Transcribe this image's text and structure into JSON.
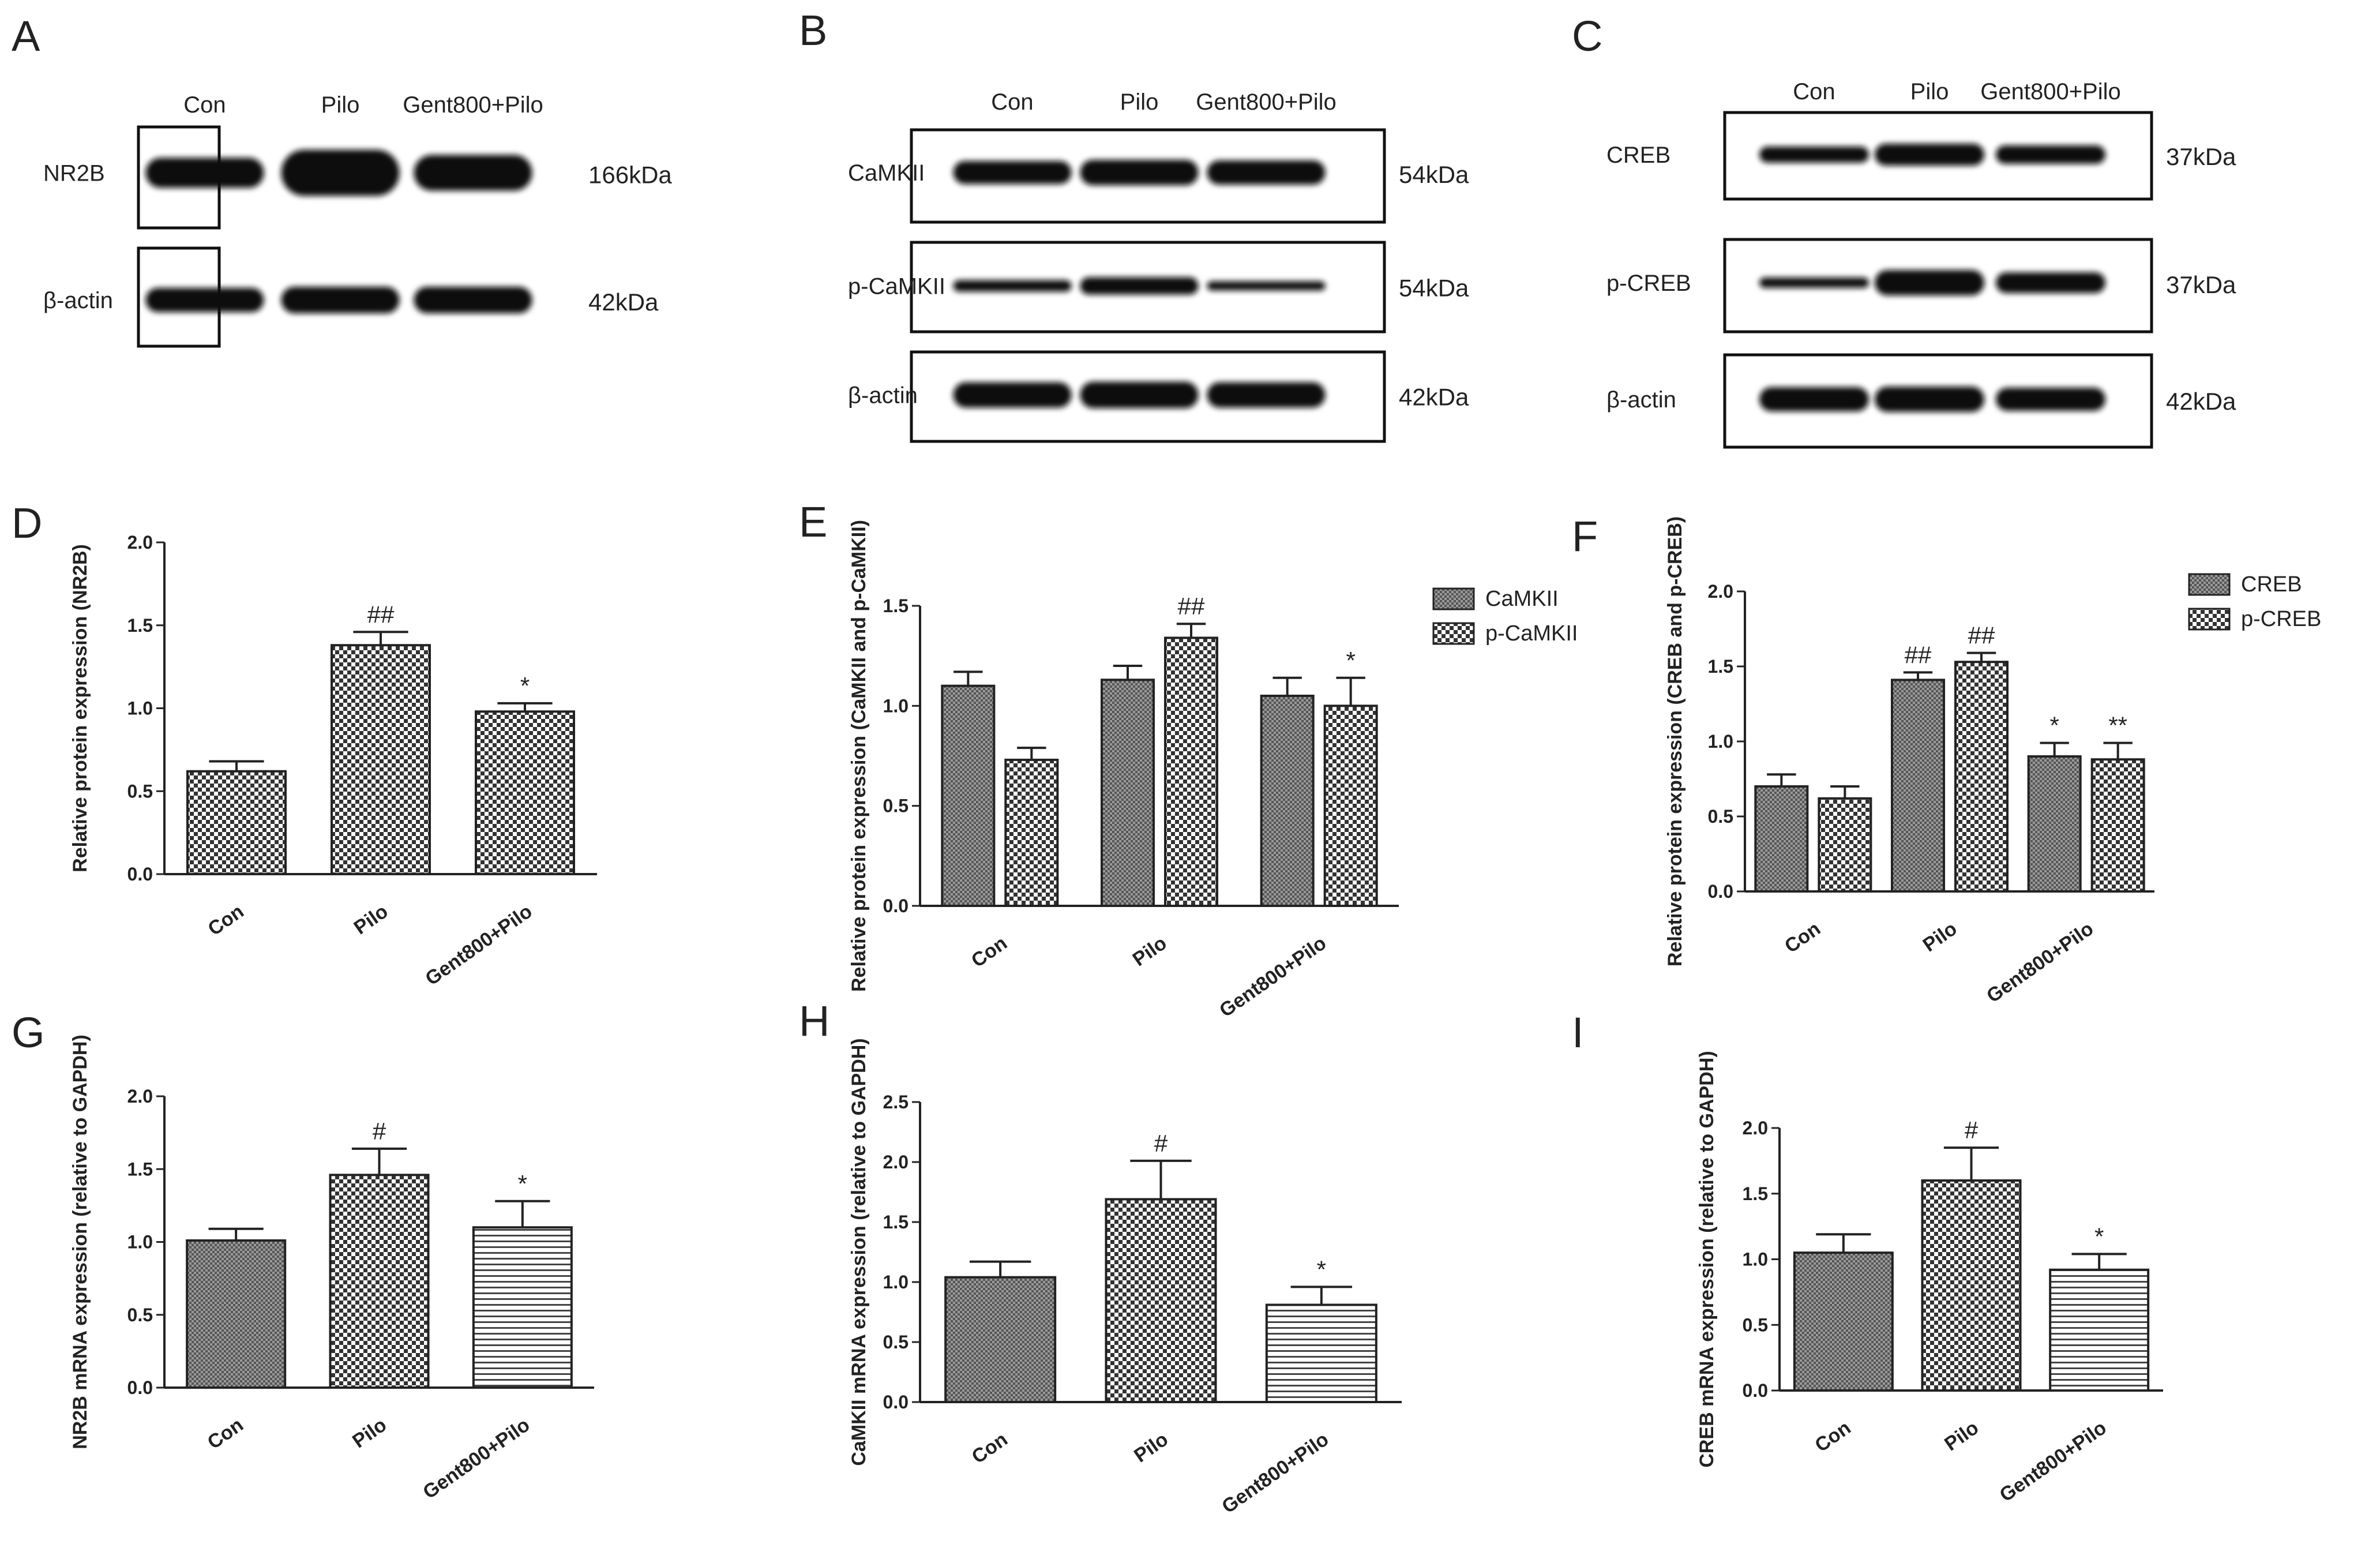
{
  "panels": [
    {
      "letter": "A",
      "lanes": [
        "Con",
        "Pilo",
        "Gent800+Pilo"
      ],
      "blots": [
        {
          "name": "NR2B",
          "size": "166kDa"
        },
        {
          "name": "β-actin",
          "size": "42kDa"
        }
      ]
    },
    {
      "letter": "B",
      "lanes": [
        "Con",
        "Pilo",
        "Gent800+Pilo"
      ],
      "blots": [
        {
          "name": "CaMKII",
          "size": "54kDa"
        },
        {
          "name": "p-CaMKII",
          "size": "54kDa"
        },
        {
          "name": "β-actin",
          "size": "42kDa"
        }
      ]
    },
    {
      "letter": "C",
      "lanes": [
        "Con",
        "Pilo",
        "Gent800+Pilo"
      ],
      "blots": [
        {
          "name": "CREB",
          "size": "37kDa"
        },
        {
          "name": "p-CREB",
          "size": "37kDa"
        },
        {
          "name": "β-actin",
          "size": "42kDa"
        }
      ]
    }
  ],
  "chart_data": [
    {
      "letter": "D",
      "type": "bar",
      "categories": [
        "Con",
        "Pilo",
        "Gent800+Pilo"
      ],
      "ylabel": "Relative protein expression (NR2B)",
      "ylim": [
        0,
        2.0
      ],
      "yticks": [
        "0.0",
        "0.5",
        "1.0",
        "1.5",
        "2.0"
      ],
      "legend": "none",
      "series": [
        {
          "name": "",
          "pattern": "check",
          "values": [
            0.62,
            1.38,
            0.98
          ],
          "errors": [
            0.06,
            0.08,
            0.05
          ],
          "marks": [
            "",
            "##",
            "*"
          ]
        }
      ]
    },
    {
      "letter": "E",
      "type": "bar",
      "categories": [
        "Con",
        "Pilo",
        "Gent800+Pilo"
      ],
      "ylabel": "Relative protein expression (CaMKII and p-CaMKII)",
      "ylim": [
        0,
        1.5
      ],
      "yticks": [
        "0.0",
        "0.5",
        "1.0",
        "1.5"
      ],
      "legend": "right",
      "series": [
        {
          "name": "CaMKII",
          "pattern": "fine",
          "values": [
            1.1,
            1.13,
            1.05
          ],
          "errors": [
            0.07,
            0.07,
            0.09
          ],
          "marks": [
            "",
            "",
            ""
          ]
        },
        {
          "name": "p-CaMKII",
          "pattern": "check",
          "values": [
            0.73,
            1.34,
            1.0
          ],
          "errors": [
            0.06,
            0.07,
            0.14
          ],
          "marks": [
            "",
            "##",
            "*"
          ]
        }
      ]
    },
    {
      "letter": "F",
      "type": "bar",
      "categories": [
        "Con",
        "Pilo",
        "Gent800+Pilo"
      ],
      "ylabel": "Relative protein expression (CREB and p-CREB)",
      "ylim": [
        0,
        2.0
      ],
      "yticks": [
        "0.0",
        "0.5",
        "1.0",
        "1.5",
        "2.0"
      ],
      "legend": "right",
      "series": [
        {
          "name": "CREB",
          "pattern": "fine",
          "values": [
            0.7,
            1.41,
            0.9
          ],
          "errors": [
            0.08,
            0.05,
            0.09
          ],
          "marks": [
            "",
            "##",
            "*"
          ]
        },
        {
          "name": "p-CREB",
          "pattern": "check",
          "values": [
            0.62,
            1.53,
            0.88
          ],
          "errors": [
            0.08,
            0.06,
            0.11
          ],
          "marks": [
            "",
            "##",
            "**"
          ]
        }
      ]
    },
    {
      "letter": "G",
      "type": "bar",
      "categories": [
        "Con",
        "Pilo",
        "Gent800+Pilo"
      ],
      "ylabel": "NR2B mRNA expression (relative to GAPDH)",
      "ylim": [
        0,
        2.0
      ],
      "yticks": [
        "0.0",
        "0.5",
        "1.0",
        "1.5",
        "2.0"
      ],
      "legend": "none",
      "series": [
        {
          "name": "",
          "pattern": "mixed",
          "values": [
            1.01,
            1.46,
            1.1
          ],
          "errors": [
            0.08,
            0.18,
            0.18
          ],
          "marks": [
            "",
            "#",
            "*"
          ]
        }
      ]
    },
    {
      "letter": "H",
      "type": "bar",
      "categories": [
        "Con",
        "Pilo",
        "Gent800+Pilo"
      ],
      "ylabel": "CaMKII mRNA expression (relative to GAPDH)",
      "ylim": [
        0,
        2.5
      ],
      "yticks": [
        "0.0",
        "0.5",
        "1.0",
        "1.5",
        "2.0",
        "2.5"
      ],
      "legend": "none",
      "series": [
        {
          "name": "",
          "pattern": "mixed",
          "values": [
            1.04,
            1.69,
            0.81
          ],
          "errors": [
            0.13,
            0.32,
            0.15
          ],
          "marks": [
            "",
            "#",
            "*"
          ]
        }
      ]
    },
    {
      "letter": "I",
      "type": "bar",
      "categories": [
        "Con",
        "Pilo",
        "Gent800+Pilo"
      ],
      "ylabel": "CREB mRNA expression (relative to GAPDH)",
      "ylim": [
        0,
        2.0
      ],
      "yticks": [
        "0.0",
        "0.5",
        "1.0",
        "1.5",
        "2.0"
      ],
      "legend": "none",
      "series": [
        {
          "name": "",
          "pattern": "mixed",
          "values": [
            1.05,
            1.6,
            0.92
          ],
          "errors": [
            0.14,
            0.25,
            0.12
          ],
          "marks": [
            "",
            "#",
            "*"
          ]
        }
      ]
    }
  ],
  "colors": {
    "ink": "#222222",
    "band": "#111111",
    "pattern_fill": "#777777",
    "background": "#ffffff"
  }
}
